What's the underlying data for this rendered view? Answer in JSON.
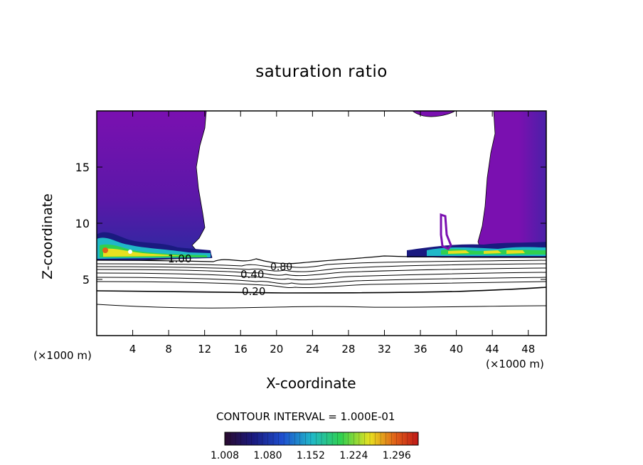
{
  "chart_data": {
    "type": "heatmap",
    "title": "saturation ratio",
    "xlabel": "X-coordinate",
    "ylabel": "Z-coordinate",
    "x_unit": "(×1000 m)",
    "xlim": [
      0,
      50
    ],
    "ylim": [
      0,
      20
    ],
    "x_ticks": [
      4,
      8,
      12,
      16,
      20,
      24,
      28,
      32,
      36,
      40,
      44,
      48
    ],
    "y_ticks": [
      5,
      10,
      15
    ],
    "contour_interval": "CONTOUR INTERVAL = 1.000E-01",
    "contour_labels": [
      "1.00",
      "0.80",
      "0.40",
      "0.20"
    ],
    "colorbar": {
      "range": [
        1.008,
        1.332
      ],
      "ticks": [
        "1.008",
        "1.080",
        "1.152",
        "1.224",
        "1.296"
      ],
      "colormap": [
        "#2a0a2e",
        "#1a1a80",
        "#1e50d0",
        "#20b8c8",
        "#30d050",
        "#e8e020",
        "#e06018",
        "#c01818"
      ]
    },
    "fill_color": "#7a10b0"
  }
}
